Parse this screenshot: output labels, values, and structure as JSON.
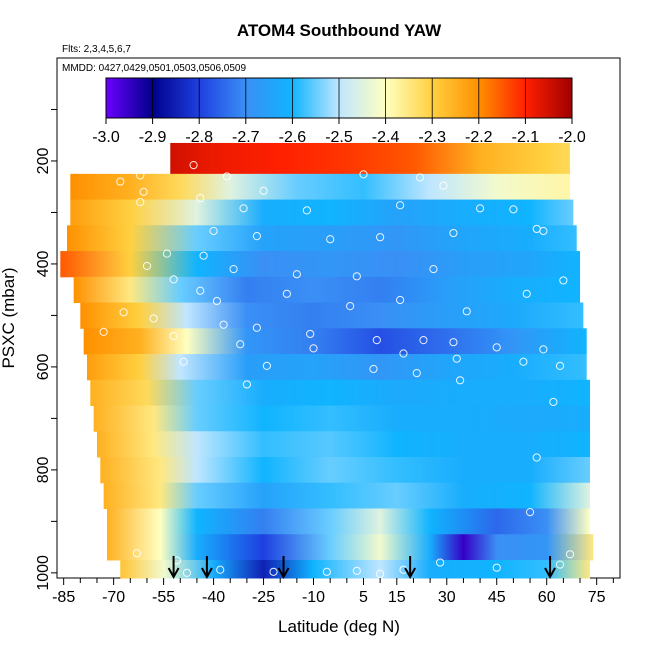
{
  "chart_data": {
    "type": "heatmap",
    "title": "ATOM4 Southbound YAW",
    "flights_note": "Flts: 2,3,4,5,6,7",
    "dates_note": "MMDD: 0427,0429,0501,0503,0506,0509",
    "xlabel": "Latitude (deg N)",
    "ylabel": "PSXC (mbar)",
    "xlim": [
      -87,
      82
    ],
    "ylim": [
      1010,
      0
    ],
    "x_ticks": [
      -85,
      -70,
      -55,
      -40,
      -25,
      -10,
      5,
      15,
      30,
      45,
      60,
      75
    ],
    "x_tick_labels": [
      "-85",
      "-70",
      "-55",
      "-40",
      "-25",
      "-10",
      "5",
      "15",
      "30",
      "45",
      "60",
      "75"
    ],
    "y_ticks": [
      200,
      400,
      600,
      800,
      1000
    ],
    "y_tick_labels": [
      "200",
      "400",
      "600",
      "800",
      "1000"
    ],
    "colorbar": {
      "min": -3.0,
      "max": -2.0,
      "ticks": [
        -3.0,
        -2.9,
        -2.8,
        -2.7,
        -2.6,
        -2.5,
        -2.4,
        -2.3,
        -2.2,
        -2.1,
        -2.0
      ],
      "tick_labels": [
        "-3.0",
        "-2.9",
        "-2.8",
        "-2.7",
        "-2.6",
        "-2.5",
        "-2.4",
        "-2.3",
        "-2.2",
        "-2.1",
        "-2.0"
      ],
      "colors": [
        "#6a00ff",
        "#00008b",
        "#1e40e0",
        "#3a8ff5",
        "#10b4ff",
        "#bfe6ff",
        "#ffffc0",
        "#ffd040",
        "#ff9000",
        "#ff2000",
        "#a00000"
      ]
    },
    "pressure_levels": [
      200,
      250,
      300,
      350,
      400,
      450,
      500,
      550,
      600,
      650,
      700,
      750,
      800,
      850,
      900,
      950,
      1000
    ],
    "bands": [
      {
        "p": 200,
        "lat0": -53,
        "lat1": 67,
        "stops": [
          [
            -53,
            -2.05
          ],
          [
            -40,
            -2.08
          ],
          [
            -20,
            -2.1
          ],
          [
            0,
            -2.12
          ],
          [
            20,
            -2.15
          ],
          [
            40,
            -2.25
          ],
          [
            60,
            -2.3
          ],
          [
            67,
            -2.32
          ]
        ]
      },
      {
        "p": 250,
        "lat0": -83,
        "lat1": 67,
        "stops": [
          [
            -83,
            -2.2
          ],
          [
            -65,
            -2.25
          ],
          [
            -50,
            -2.32
          ],
          [
            -35,
            -2.45
          ],
          [
            -15,
            -2.55
          ],
          [
            5,
            -2.58
          ],
          [
            25,
            -2.5
          ],
          [
            45,
            -2.42
          ],
          [
            67,
            -2.38
          ]
        ]
      },
      {
        "p": 300,
        "lat0": -83,
        "lat1": 68,
        "stops": [
          [
            -83,
            -2.22
          ],
          [
            -65,
            -2.3
          ],
          [
            -45,
            -2.45
          ],
          [
            -25,
            -2.62
          ],
          [
            -5,
            -2.6
          ],
          [
            15,
            -2.65
          ],
          [
            35,
            -2.62
          ],
          [
            55,
            -2.6
          ],
          [
            68,
            -2.55
          ]
        ]
      },
      {
        "p": 350,
        "lat0": -84,
        "lat1": 69,
        "stops": [
          [
            -84,
            -2.2
          ],
          [
            -65,
            -2.3
          ],
          [
            -45,
            -2.55
          ],
          [
            -25,
            -2.65
          ],
          [
            -5,
            -2.66
          ],
          [
            15,
            -2.68
          ],
          [
            35,
            -2.64
          ],
          [
            55,
            -2.62
          ],
          [
            69,
            -2.58
          ]
        ]
      },
      {
        "p": 400,
        "lat0": -86,
        "lat1": 70,
        "stops": [
          [
            -86,
            -2.15
          ],
          [
            -65,
            -2.3
          ],
          [
            -45,
            -2.6
          ],
          [
            -25,
            -2.7
          ],
          [
            -5,
            -2.68
          ],
          [
            15,
            -2.7
          ],
          [
            35,
            -2.66
          ],
          [
            55,
            -2.64
          ],
          [
            70,
            -2.6
          ]
        ]
      },
      {
        "p": 450,
        "lat0": -82,
        "lat1": 70,
        "stops": [
          [
            -82,
            -2.2
          ],
          [
            -65,
            -2.35
          ],
          [
            -50,
            -2.55
          ],
          [
            -30,
            -2.72
          ],
          [
            -10,
            -2.7
          ],
          [
            10,
            -2.72
          ],
          [
            30,
            -2.66
          ],
          [
            50,
            -2.62
          ],
          [
            70,
            -2.6
          ]
        ]
      },
      {
        "p": 500,
        "lat0": -80,
        "lat1": 71,
        "stops": [
          [
            -80,
            -2.2
          ],
          [
            -62,
            -2.3
          ],
          [
            -48,
            -2.5
          ],
          [
            -30,
            -2.7
          ],
          [
            -10,
            -2.72
          ],
          [
            10,
            -2.7
          ],
          [
            30,
            -2.66
          ],
          [
            50,
            -2.63
          ],
          [
            71,
            -2.58
          ]
        ]
      },
      {
        "p": 550,
        "lat0": -79,
        "lat1": 72,
        "stops": [
          [
            -79,
            -2.2
          ],
          [
            -62,
            -2.25
          ],
          [
            -48,
            -2.4
          ],
          [
            -30,
            -2.68
          ],
          [
            -10,
            -2.72
          ],
          [
            10,
            -2.78
          ],
          [
            30,
            -2.74
          ],
          [
            50,
            -2.68
          ],
          [
            72,
            -2.6
          ]
        ]
      },
      {
        "p": 600,
        "lat0": -78,
        "lat1": 72,
        "stops": [
          [
            -78,
            -2.22
          ],
          [
            -62,
            -2.3
          ],
          [
            -50,
            -2.5
          ],
          [
            -30,
            -2.66
          ],
          [
            -10,
            -2.65
          ],
          [
            10,
            -2.68
          ],
          [
            30,
            -2.64
          ],
          [
            50,
            -2.62
          ],
          [
            72,
            -2.58
          ]
        ]
      },
      {
        "p": 650,
        "lat0": -77,
        "lat1": 73,
        "stops": [
          [
            -77,
            -2.25
          ],
          [
            -60,
            -2.32
          ],
          [
            -45,
            -2.55
          ],
          [
            -25,
            -2.62
          ],
          [
            -5,
            -2.6
          ],
          [
            15,
            -2.63
          ],
          [
            35,
            -2.62
          ],
          [
            55,
            -2.62
          ],
          [
            73,
            -2.6
          ]
        ]
      },
      {
        "p": 700,
        "lat0": -76,
        "lat1": 73,
        "stops": [
          [
            -76,
            -2.25
          ],
          [
            -58,
            -2.35
          ],
          [
            -45,
            -2.55
          ],
          [
            -25,
            -2.6
          ],
          [
            -5,
            -2.58
          ],
          [
            15,
            -2.62
          ],
          [
            35,
            -2.62
          ],
          [
            55,
            -2.63
          ],
          [
            73,
            -2.62
          ]
        ]
      },
      {
        "p": 750,
        "lat0": -75,
        "lat1": 73,
        "stops": [
          [
            -75,
            -2.25
          ],
          [
            -58,
            -2.35
          ],
          [
            -45,
            -2.5
          ],
          [
            -25,
            -2.58
          ],
          [
            -5,
            -2.56
          ],
          [
            15,
            -2.6
          ],
          [
            35,
            -2.62
          ],
          [
            55,
            -2.62
          ],
          [
            73,
            -2.6
          ]
        ]
      },
      {
        "p": 800,
        "lat0": -74,
        "lat1": 73,
        "stops": [
          [
            -74,
            -2.25
          ],
          [
            -56,
            -2.35
          ],
          [
            -45,
            -2.5
          ],
          [
            -25,
            -2.6
          ],
          [
            -5,
            -2.55
          ],
          [
            15,
            -2.58
          ],
          [
            35,
            -2.62
          ],
          [
            55,
            -2.62
          ],
          [
            73,
            -2.55
          ]
        ]
      },
      {
        "p": 850,
        "lat0": -73,
        "lat1": 73,
        "stops": [
          [
            -73,
            -2.25
          ],
          [
            -56,
            -2.35
          ],
          [
            -45,
            -2.55
          ],
          [
            -25,
            -2.65
          ],
          [
            -5,
            -2.58
          ],
          [
            15,
            -2.55
          ],
          [
            35,
            -2.62
          ],
          [
            55,
            -2.6
          ],
          [
            73,
            -2.45
          ]
        ]
      },
      {
        "p": 900,
        "lat0": -72,
        "lat1": 73,
        "stops": [
          [
            -72,
            -2.25
          ],
          [
            -56,
            -2.4
          ],
          [
            -45,
            -2.6
          ],
          [
            -25,
            -2.72
          ],
          [
            -5,
            -2.55
          ],
          [
            10,
            -2.45
          ],
          [
            25,
            -2.6
          ],
          [
            45,
            -2.75
          ],
          [
            60,
            -2.7
          ],
          [
            73,
            -2.4
          ]
        ]
      },
      {
        "p": 950,
        "lat0": -72,
        "lat1": 74,
        "stops": [
          [
            -72,
            -2.25
          ],
          [
            -56,
            -2.4
          ],
          [
            -45,
            -2.62
          ],
          [
            -25,
            -2.8
          ],
          [
            -5,
            -2.55
          ],
          [
            10,
            -2.42
          ],
          [
            25,
            -2.62
          ],
          [
            35,
            -2.95
          ],
          [
            45,
            -2.7
          ],
          [
            60,
            -2.68
          ],
          [
            74,
            -2.35
          ]
        ]
      },
      {
        "p": 1000,
        "lat0": -68,
        "lat1": 73,
        "stops": [
          [
            -68,
            -2.28
          ],
          [
            -55,
            -2.42
          ],
          [
            -40,
            -2.62
          ],
          [
            -25,
            -2.85
          ],
          [
            -10,
            -2.6
          ],
          [
            10,
            -2.5
          ],
          [
            25,
            -2.62
          ],
          [
            45,
            -2.6
          ],
          [
            60,
            -2.58
          ],
          [
            73,
            -2.35
          ]
        ]
      }
    ],
    "arrows_lat": [
      -52,
      -42,
      -19,
      19,
      61
    ],
    "obs_points": [
      [
        -68,
        240
      ],
      [
        -62,
        228
      ],
      [
        -61,
        260
      ],
      [
        -56,
        210
      ],
      [
        -46,
        208
      ],
      [
        -36,
        230
      ],
      [
        -25,
        258
      ],
      [
        5,
        226
      ],
      [
        22,
        232
      ],
      [
        29,
        248
      ],
      [
        -62,
        280
      ],
      [
        -44,
        272
      ],
      [
        -31,
        292
      ],
      [
        -12,
        296
      ],
      [
        16,
        286
      ],
      [
        40,
        292
      ],
      [
        50,
        294
      ],
      [
        57,
        332
      ],
      [
        59,
        336
      ],
      [
        -40,
        336
      ],
      [
        -27,
        346
      ],
      [
        -5,
        352
      ],
      [
        10,
        348
      ],
      [
        32,
        340
      ],
      [
        -54,
        380
      ],
      [
        -43,
        384
      ],
      [
        -34,
        410
      ],
      [
        -15,
        420
      ],
      [
        3,
        424
      ],
      [
        26,
        410
      ],
      [
        -60,
        404
      ],
      [
        -52,
        430
      ],
      [
        -44,
        452
      ],
      [
        -39,
        472
      ],
      [
        -18,
        458
      ],
      [
        1,
        482
      ],
      [
        16,
        470
      ],
      [
        36,
        492
      ],
      [
        54,
        458
      ],
      [
        65,
        432
      ],
      [
        -67,
        494
      ],
      [
        -58,
        506
      ],
      [
        -37,
        518
      ],
      [
        -27,
        524
      ],
      [
        -11,
        536
      ],
      [
        9,
        548
      ],
      [
        23,
        548
      ],
      [
        32,
        552
      ],
      [
        45,
        562
      ],
      [
        59,
        566
      ],
      [
        -73,
        532
      ],
      [
        -52,
        540
      ],
      [
        -32,
        556
      ],
      [
        -10,
        564
      ],
      [
        17,
        574
      ],
      [
        33,
        584
      ],
      [
        53,
        590
      ],
      [
        64,
        598
      ],
      [
        -49,
        590
      ],
      [
        -24,
        598
      ],
      [
        8,
        604
      ],
      [
        21,
        612
      ],
      [
        34,
        626
      ],
      [
        -30,
        634
      ],
      [
        62,
        668
      ],
      [
        57,
        776
      ],
      [
        55,
        882
      ],
      [
        -63,
        962
      ],
      [
        -51,
        976
      ],
      [
        -38,
        994
      ],
      [
        -22,
        998
      ],
      [
        -6,
        998
      ],
      [
        3,
        996
      ],
      [
        17,
        994
      ],
      [
        28,
        980
      ],
      [
        45,
        990
      ],
      [
        64,
        984
      ],
      [
        67,
        964
      ],
      [
        -48,
        1000
      ],
      [
        10,
        1002
      ]
    ]
  }
}
